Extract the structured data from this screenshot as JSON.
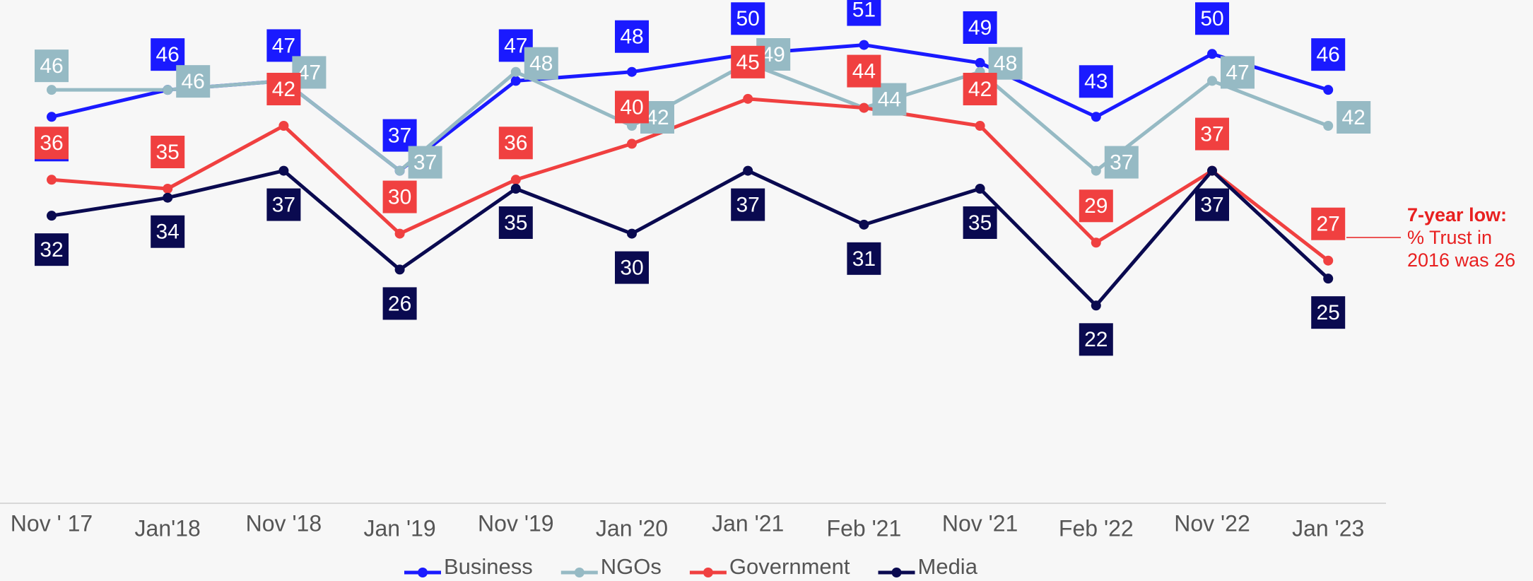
{
  "chart_data": {
    "type": "line",
    "categories": [
      "Nov ' 17",
      "Jan'18",
      "Nov '18",
      "Jan '19",
      "Nov '19",
      "Jan '20",
      "Jan '21",
      "Feb '21",
      "Nov '21",
      "Feb '22",
      "Nov '22",
      "Jan '23"
    ],
    "series": [
      {
        "name": "Business",
        "color": "#1a1aff",
        "values": [
          43,
          46,
          47,
          37,
          47,
          48,
          50,
          51,
          49,
          43,
          50,
          46
        ]
      },
      {
        "name": "NGOs",
        "color": "#96bac4",
        "values": [
          46,
          46,
          47,
          37,
          48,
          42,
          49,
          44,
          48,
          37,
          47,
          42
        ]
      },
      {
        "name": "Government",
        "color": "#f04040",
        "values": [
          36,
          35,
          42,
          30,
          36,
          40,
          45,
          44,
          42,
          29,
          37,
          27
        ]
      },
      {
        "name": "Media",
        "color": "#0a0a50",
        "values": [
          32,
          34,
          37,
          26,
          35,
          30,
          37,
          31,
          35,
          22,
          37,
          25
        ]
      }
    ],
    "ylim": [
      0,
      56
    ],
    "annotation": {
      "title": "7-year low:",
      "lines": [
        "% Trust in",
        "2016 was 26"
      ],
      "color": "#e82020"
    },
    "legend": "bottom"
  }
}
